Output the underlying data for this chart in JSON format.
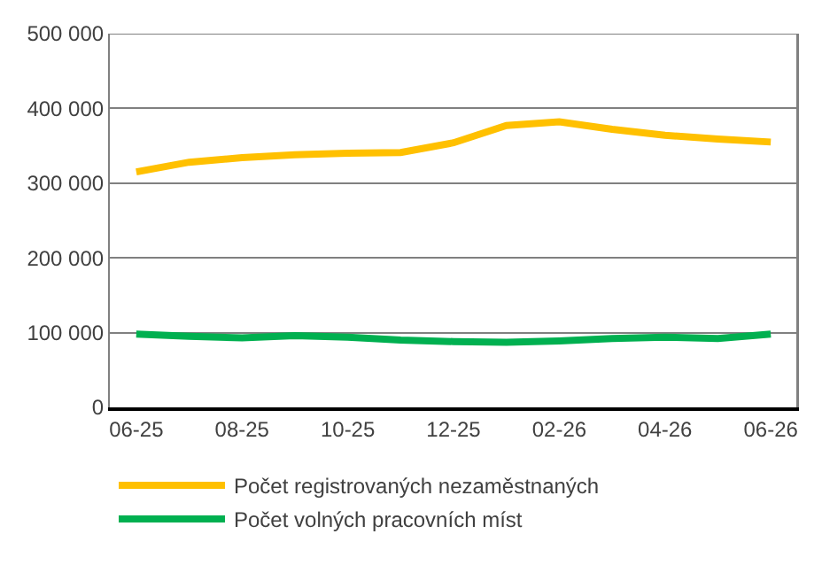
{
  "chart_data": {
    "type": "line",
    "categories": [
      "06-25",
      null,
      "08-25",
      null,
      "10-25",
      null,
      "12-25",
      null,
      "02-26",
      null,
      "04-26",
      null,
      "06-26"
    ],
    "series": [
      {
        "name": "Počet registrovaných nezaměstnaných",
        "color": "#ffc000",
        "values": [
          315000,
          328000,
          334000,
          338000,
          340000,
          341000,
          354000,
          377000,
          382000,
          372000,
          364000,
          359000,
          355000
        ]
      },
      {
        "name": "Počet volných pracovních míst",
        "color": "#00b050",
        "values": [
          98000,
          95000,
          93000,
          96000,
          94000,
          90000,
          88000,
          87000,
          89000,
          92000,
          94000,
          92000,
          98000
        ]
      }
    ],
    "ylim": [
      0,
      500000
    ],
    "yticks": [
      {
        "value": 0,
        "label": "0"
      },
      {
        "value": 100000,
        "label": "100 000"
      },
      {
        "value": 200000,
        "label": "200 000"
      },
      {
        "value": 300000,
        "label": "300 000"
      },
      {
        "value": 400000,
        "label": "400 000"
      },
      {
        "value": 500000,
        "label": "500 000"
      }
    ],
    "grid": "y",
    "legend": "bottom",
    "marker": "none",
    "line_style": "solid"
  }
}
